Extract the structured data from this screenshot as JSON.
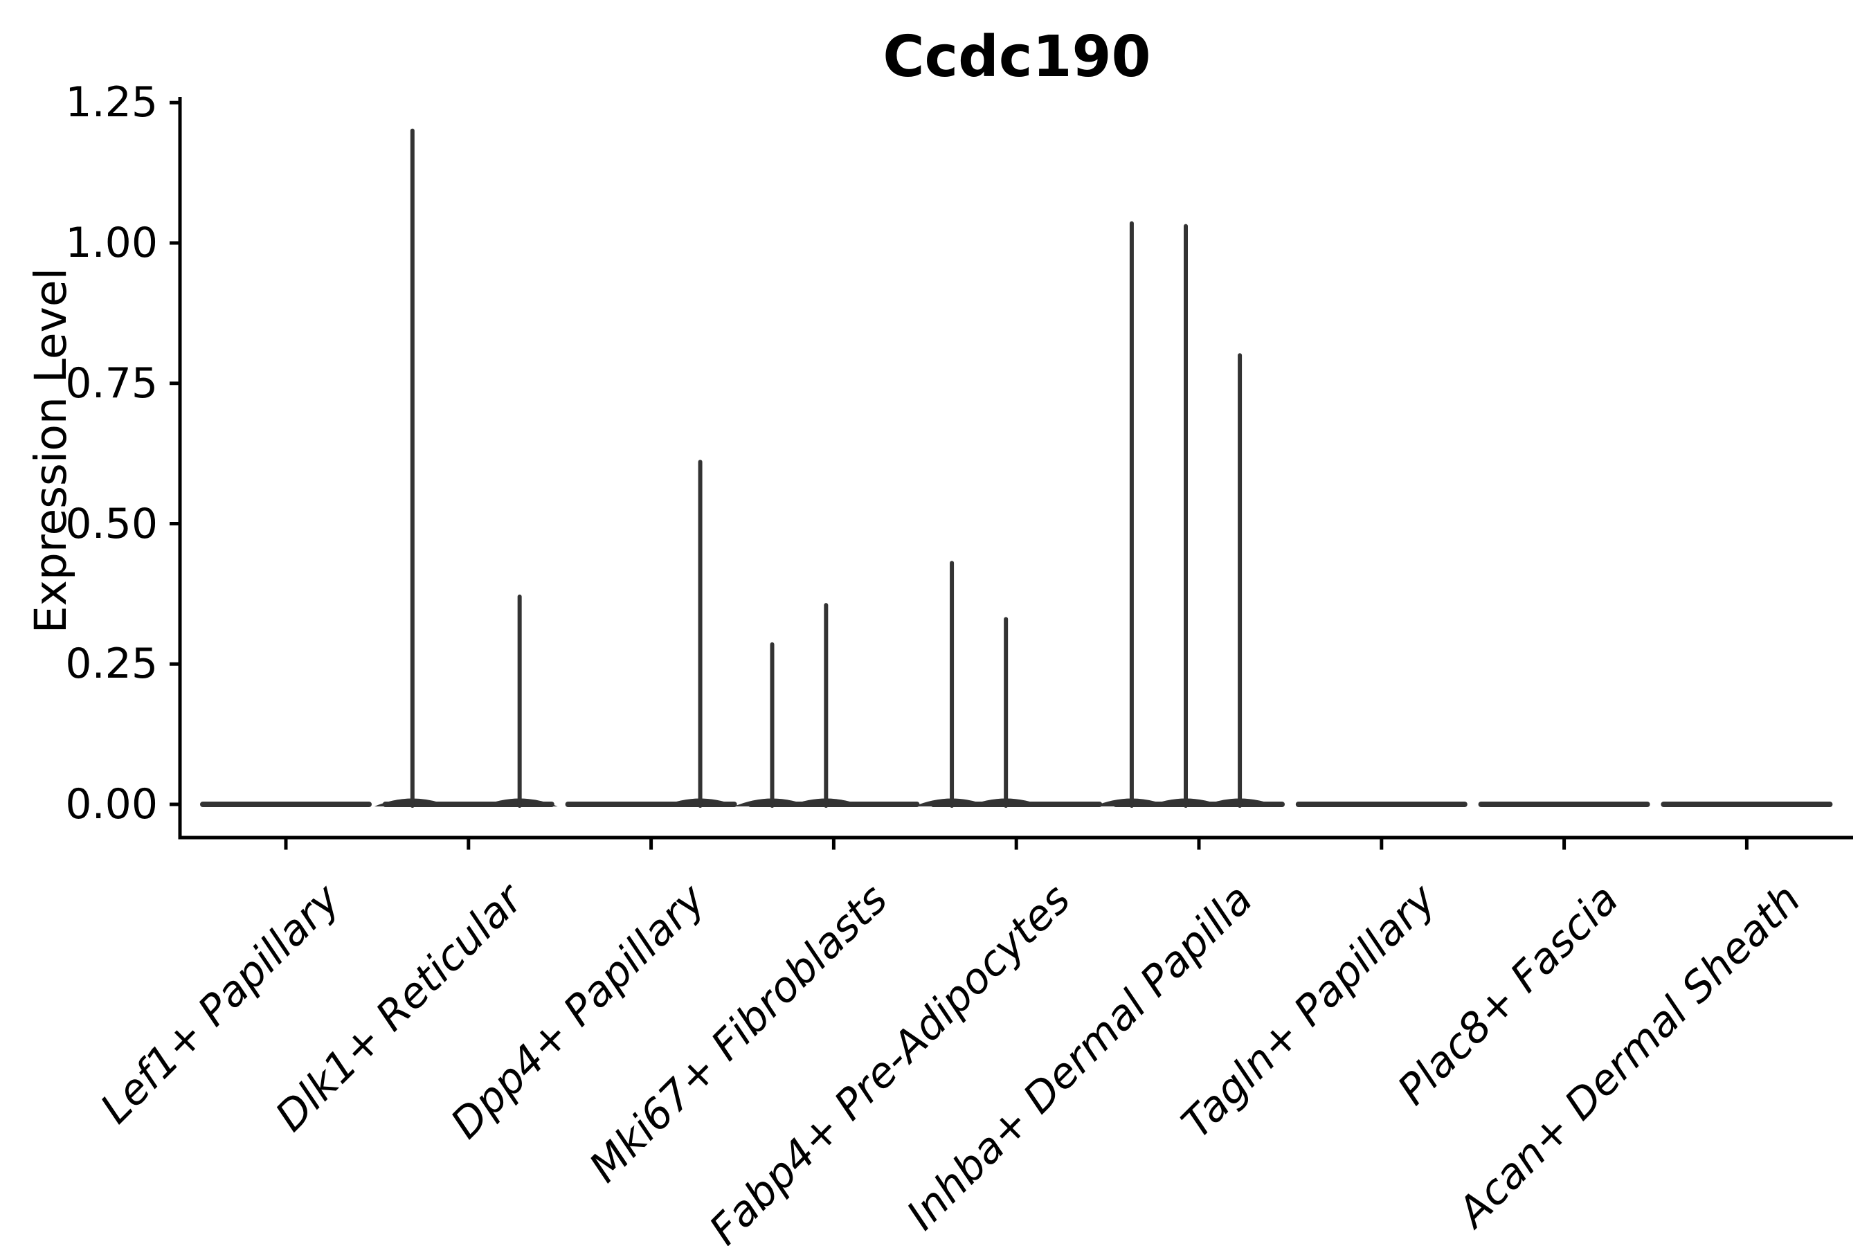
{
  "chart_data": {
    "type": "violin",
    "title": "Ccdc190",
    "ylabel": "Expression Level",
    "xlabel": "",
    "grid": false,
    "legend": null,
    "yticks": [
      "0.00",
      "0.25",
      "0.50",
      "0.75",
      "1.00",
      "1.25"
    ],
    "ytick_values": [
      0.0,
      0.25,
      0.5,
      0.75,
      1.0,
      1.25
    ],
    "ylim": [
      -0.06,
      1.26
    ],
    "categories": [
      "Lef1+ Papillary",
      "Dlk1+ Reticular",
      "Dpp4+ Papillary",
      "Mki67+ Fibroblasts",
      "Fabp4+ Pre-Adipocytes",
      "Inhba+ Dermal Papilla",
      "Tagln+ Papillary",
      "Plac8+ Fascia",
      "Acan+ Dermal Sheath"
    ],
    "violins": [
      {
        "category": "Lef1+ Papillary",
        "baseline_value": 0.0,
        "spikes": []
      },
      {
        "category": "Dlk1+ Reticular",
        "baseline_value": 0.0,
        "spikes": [
          {
            "value": 1.2,
            "x_offset": -0.307
          },
          {
            "value": 0.37,
            "x_offset": 0.28
          }
        ]
      },
      {
        "category": "Dpp4+ Papillary",
        "baseline_value": 0.0,
        "spikes": [
          {
            "value": 0.61,
            "x_offset": 0.269
          }
        ]
      },
      {
        "category": "Mki67+ Fibroblasts",
        "baseline_value": 0.0,
        "spikes": [
          {
            "value": 0.285,
            "x_offset": -0.337
          },
          {
            "value": 0.355,
            "x_offset": -0.042
          }
        ]
      },
      {
        "category": "Fabp4+ Pre-Adipocytes",
        "baseline_value": 0.0,
        "spikes": [
          {
            "value": 0.43,
            "x_offset": -0.353
          },
          {
            "value": 0.33,
            "x_offset": -0.057
          }
        ]
      },
      {
        "category": "Inhba+ Dermal Papilla",
        "baseline_value": 0.0,
        "spikes": [
          {
            "value": 1.035,
            "x_offset": -0.368
          },
          {
            "value": 1.03,
            "x_offset": -0.072
          },
          {
            "value": 0.8,
            "x_offset": 0.224
          }
        ]
      },
      {
        "category": "Tagln+ Papillary",
        "baseline_value": 0.0,
        "spikes": []
      },
      {
        "category": "Plac8+ Fascia",
        "baseline_value": 0.0,
        "spikes": []
      },
      {
        "category": "Acan+ Dermal Sheath",
        "baseline_value": 0.0,
        "spikes": []
      }
    ],
    "colors": {
      "violin": "#333333",
      "axis": "#000000",
      "text": "#000000",
      "background": "#ffffff"
    }
  }
}
